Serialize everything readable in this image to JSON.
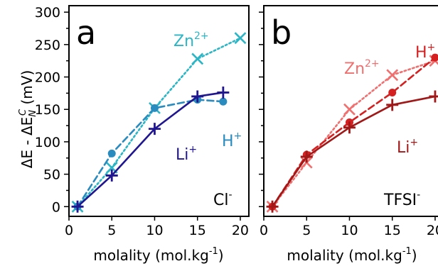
{
  "y_label": {
    "main": "ΔE - ΔE",
    "sup": "C",
    "sub": "N",
    "unit": " (mV)"
  },
  "x_label": {
    "main": "molality (mol.kg",
    "sup": "-1",
    "close": ")"
  },
  "chart_data": [
    {
      "type": "line",
      "panel_letter": "a",
      "anion": {
        "main": "Cl",
        "sup": "-"
      },
      "xlim": [
        0,
        21
      ],
      "ylim": [
        -15,
        310
      ],
      "xticks": [
        0,
        5,
        10,
        15,
        20
      ],
      "yticks": [
        0,
        50,
        100,
        150,
        200,
        250,
        300
      ],
      "series": [
        {
          "name": "Zn2+",
          "label_main": "Zn",
          "label_sup": "2+",
          "color": "#2bb5c5",
          "marker": "x",
          "line_style": "dotted",
          "x": [
            1,
            5,
            10,
            15,
            20
          ],
          "y": [
            0,
            60,
            152,
            228,
            260
          ]
        },
        {
          "name": "H+",
          "label_main": "H",
          "label_sup": "+",
          "color": "#2a8bbf",
          "marker": "circle",
          "line_style": "dashed",
          "x": [
            1,
            5,
            10,
            15,
            18
          ],
          "y": [
            0,
            82,
            152,
            165,
            162
          ]
        },
        {
          "name": "Li+",
          "label_main": "Li",
          "label_sup": "+",
          "color": "#1f1690",
          "marker": "plus",
          "line_style": "solid",
          "x": [
            1,
            5,
            10,
            15,
            18
          ],
          "y": [
            0,
            48,
            120,
            170,
            176
          ]
        }
      ]
    },
    {
      "type": "line",
      "panel_letter": "b",
      "anion": {
        "main": "TFSI",
        "sup": "-"
      },
      "xlim": [
        0,
        21
      ],
      "ylim": [
        -15,
        310
      ],
      "xticks": [
        0,
        5,
        10,
        15,
        20
      ],
      "yticks": [
        0,
        50,
        100,
        150,
        200,
        250,
        300
      ],
      "series": [
        {
          "name": "Zn2+",
          "label_main": "Zn",
          "label_sup": "2+",
          "color": "#f07070",
          "marker": "x",
          "line_style": "dotted",
          "x": [
            1,
            5,
            10,
            15,
            20
          ],
          "y": [
            0,
            68,
            150,
            203,
            225
          ]
        },
        {
          "name": "H+",
          "label_main": "H",
          "label_sup": "+",
          "color": "#d42020",
          "marker": "circle",
          "line_style": "dashed",
          "x": [
            1,
            5,
            10,
            15,
            20
          ],
          "y": [
            0,
            80,
            130,
            176,
            230
          ]
        },
        {
          "name": "Li+",
          "label_main": "Li",
          "label_sup": "+",
          "color": "#a01818",
          "marker": "plus",
          "line_style": "solid",
          "x": [
            1,
            5,
            10,
            15,
            20
          ],
          "y": [
            0,
            77,
            122,
            157,
            170
          ]
        }
      ]
    }
  ]
}
